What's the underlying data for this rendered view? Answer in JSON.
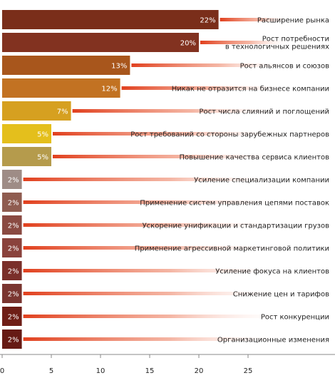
{
  "chart_data": {
    "type": "bar",
    "orientation": "horizontal",
    "title": "",
    "xlabel": "",
    "ylabel": "",
    "xlim": [
      0,
      33
    ],
    "xticks": [
      0,
      5,
      10,
      15,
      20,
      25
    ],
    "grid": false,
    "legend": "none",
    "categories": [
      "Расширение рынка",
      "Рост потребности\nв технологичных решениях",
      "Рост альянсов и союзов",
      "Никак не отразится на бизнесе компании",
      "Рост числа слияний и поглощений",
      "Рост требований со стороны зарубежных партнеров",
      "Повышение качества сервиса клиентов",
      "Усиление специализации компании",
      "Применение систем управления цепями поставок",
      "Ускорение унификации и стандартизации грузов",
      "Применение агрессивной маркетинговой политики",
      "Усиление фокуса на клиентов",
      "Снижение цен и тарифов",
      "Рост конкуренции",
      "Организационные изменения"
    ],
    "values": [
      22,
      20,
      13,
      12,
      7,
      5,
      5,
      2,
      2,
      2,
      2,
      2,
      2,
      2,
      2
    ],
    "value_labels": [
      "22%",
      "20%",
      "13%",
      "12%",
      "7%",
      "5%",
      "5%",
      "2%",
      "2%",
      "2%",
      "2%",
      "2%",
      "2%",
      "2%",
      "2%"
    ],
    "colors": [
      "#7a2e1a",
      "#823220",
      "#a8561c",
      "#c27222",
      "#d6a020",
      "#e4bf1c",
      "#b59b4c",
      "#9e8c86",
      "#8f5c50",
      "#8a4a42",
      "#8a423c",
      "#7a2f2a",
      "#7a3530",
      "#6e1e16",
      "#661a14"
    ],
    "accent_color": "#e1401e"
  }
}
